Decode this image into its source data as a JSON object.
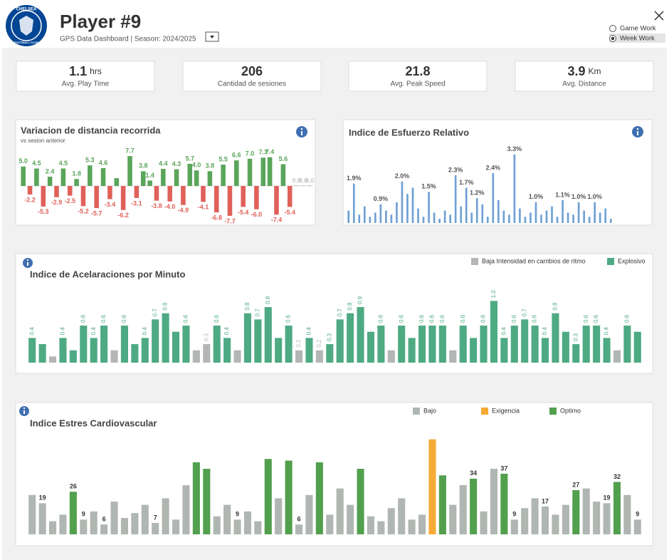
{
  "header": {
    "title": "Player #9",
    "subtitle": "GPS Data Dashboard | Season: 2024/2025",
    "logo_top": "CHELSEA",
    "logo_bottom": "FOOTBALL CLUB"
  },
  "controls": {
    "options": [
      "Game Work",
      "Week Work"
    ],
    "selected_index": 1
  },
  "kpis": [
    {
      "value": 1.1,
      "unit": "hrs",
      "label": "Avg. Play Time"
    },
    {
      "value": 206,
      "label": "Cantidad de sesiones"
    },
    {
      "value": 21.8,
      "label": "Avg. Peak Speed"
    },
    {
      "value": 3.9,
      "unit": "Km",
      "label": "Avg. Distance"
    }
  ],
  "chart_data": [
    {
      "type": "bar",
      "title": "Variacion de distancia recorrida",
      "subtitle": "vs sesion anterior",
      "values": [
        5.0,
        -2.2,
        4.5,
        -5.3,
        2.4,
        -2.9,
        4.5,
        -2.5,
        1.8,
        -5.2,
        5.3,
        -5.7,
        4.6,
        -3.4,
        2.0,
        -6.2,
        7.7,
        -3.1,
        3.8,
        1.4,
        -3.8,
        4.4,
        -4.0,
        4.3,
        -4.9,
        5.7,
        4.0,
        -4.1,
        3.8,
        -6.8,
        5.5,
        -7.7,
        6.6,
        -5.4,
        7.0,
        -6.0,
        7.3,
        7.4,
        -7.4,
        5.6,
        -5.4,
        0.0,
        0.0,
        0.0
      ],
      "value_labels": [
        "5.0",
        "-2.2",
        "4.5",
        "-5.3",
        "2.4",
        "-2.9",
        "4.5",
        "-2.5",
        "1.8",
        "-5.2",
        "5.3",
        "-5.7",
        "4.6",
        "-3.4",
        null,
        "-6.2",
        "7.7",
        "-3.1",
        "3.8",
        "1.4",
        "-3.8",
        "4.4",
        "-4.0",
        "4.3",
        "-4.9",
        "5.7",
        "4.0",
        "-4.1",
        "3.8",
        "-6.8",
        "5.5",
        "-7.7",
        "6.6",
        "-5.4",
        "7.0",
        "-6.0",
        "7.3",
        "7.4",
        "-7.4",
        "5.6",
        "-5.4",
        "0.0",
        "0.0",
        "0.0"
      ],
      "ylim": [
        -9,
        9
      ],
      "colors": {
        "positive": "#5aa55a",
        "negative": "#e0605a",
        "zero": "#c8c8c8"
      }
    },
    {
      "type": "bar",
      "title": "Indice de Esfuerzo Relativo",
      "values": [
        0.6,
        1.9,
        0.4,
        0.8,
        0.3,
        0.5,
        0.9,
        0.6,
        0.4,
        1.0,
        2.0,
        1.4,
        1.7,
        0.7,
        0.3,
        1.5,
        0.5,
        0.2,
        0.6,
        0.4,
        2.3,
        0.8,
        1.7,
        0.5,
        1.2,
        0.9,
        0.3,
        2.4,
        1.1,
        0.6,
        0.4,
        3.3,
        0.7,
        0.3,
        0.5,
        1.0,
        0.4,
        0.6,
        0.8,
        0.3,
        1.1,
        0.5,
        0.4,
        1.0,
        0.6,
        0.3,
        1.0,
        0.5,
        0.7,
        0.2
      ],
      "value_labels": [
        null,
        "1.9%",
        null,
        null,
        null,
        null,
        "0.9%",
        null,
        null,
        null,
        "2.0%",
        null,
        null,
        null,
        null,
        "1.5%",
        null,
        null,
        null,
        null,
        "2.3%",
        null,
        "1.7%",
        null,
        "1.2%",
        null,
        null,
        "2.4%",
        null,
        null,
        null,
        "3.3%",
        null,
        null,
        null,
        "1.0%",
        null,
        null,
        null,
        null,
        "1.1%",
        null,
        null,
        "1.0%",
        null,
        null,
        "1.0%",
        null,
        null,
        null
      ],
      "ylim": [
        0,
        3.5
      ],
      "color": "#6d9fd4"
    },
    {
      "type": "bar",
      "title": "Indice de Acelaraciones por Minuto",
      "ylim": [
        0,
        1.2
      ],
      "series": [
        {
          "name": "Baja Intensidad en cambios de ritmo",
          "color": "#b3b6b4",
          "values": [
            null,
            null,
            0.1,
            null,
            null,
            null,
            null,
            null,
            0.2,
            null,
            null,
            null,
            null,
            null,
            null,
            null,
            0.2,
            0.3,
            null,
            null,
            0.2,
            null,
            null,
            null,
            null,
            null,
            0.2,
            null,
            0.2,
            null,
            null,
            null,
            null,
            null,
            null,
            0.2,
            null,
            null,
            null,
            null,
            null,
            0.2,
            null,
            null,
            null,
            null,
            null,
            null,
            null,
            null,
            null,
            null,
            null,
            null,
            null,
            null,
            null,
            0.2,
            null,
            null
          ],
          "value_labels": [
            null,
            null,
            null,
            null,
            null,
            null,
            null,
            null,
            null,
            null,
            null,
            null,
            null,
            null,
            null,
            null,
            null,
            "0.3",
            null,
            null,
            null,
            null,
            null,
            null,
            null,
            null,
            "0.2",
            null,
            "0.2",
            null,
            null,
            null,
            null,
            null,
            null,
            null,
            null,
            null,
            null,
            null,
            null,
            null,
            null,
            null,
            null,
            null,
            null,
            null,
            null,
            null,
            null,
            null,
            null,
            null,
            null,
            null,
            null,
            null,
            null,
            null
          ]
        },
        {
          "name": "Explosivo",
          "color": "#4eaa83",
          "values": [
            0.4,
            0.3,
            null,
            0.4,
            0.2,
            0.6,
            0.4,
            0.6,
            null,
            0.6,
            0.3,
            0.4,
            0.7,
            0.8,
            0.5,
            0.6,
            null,
            null,
            0.6,
            0.4,
            null,
            0.8,
            0.7,
            0.9,
            0.4,
            0.6,
            null,
            0.4,
            null,
            0.3,
            0.7,
            0.8,
            0.9,
            0.5,
            0.6,
            null,
            0.6,
            0.4,
            0.6,
            0.6,
            0.6,
            null,
            0.6,
            0.4,
            0.6,
            1.0,
            0.4,
            0.6,
            0.7,
            0.6,
            0.4,
            0.8,
            0.5,
            0.3,
            0.6,
            0.6,
            0.4,
            null,
            0.6,
            0.5
          ],
          "value_labels": [
            "0.4",
            null,
            null,
            "0.4",
            null,
            "0.6",
            "0.4",
            "0.6",
            null,
            "0.6",
            null,
            "0.4",
            "0.7",
            "0.8",
            null,
            "0.6",
            null,
            null,
            "0.6",
            "0.4",
            null,
            "0.8",
            "0.7",
            "0.9",
            null,
            "0.6",
            null,
            "0.4",
            null,
            "0.3",
            "0.7",
            "0.8",
            "0.9",
            null,
            "0.6",
            null,
            "0.6",
            null,
            "0.6",
            "0.6",
            "0.6",
            null,
            "0.6",
            null,
            "0.6",
            "1.0",
            "0.4",
            "0.6",
            "0.7",
            "0.6",
            "0.4",
            "0.8",
            null,
            "0.3",
            "0.6",
            "0.6",
            "0.4",
            null,
            "0.6",
            null
          ]
        }
      ]
    },
    {
      "type": "bar",
      "title": "Indice Estres Cardiovascular",
      "ylim": [
        0,
        60
      ],
      "series": [
        {
          "name": "Bajo",
          "color": "#b0b7b2",
          "values": [
            24,
            19,
            8,
            12,
            null,
            9,
            14,
            6,
            20,
            10,
            13,
            18,
            7,
            22,
            9,
            30,
            null,
            null,
            11,
            18,
            9,
            14,
            8,
            null,
            22,
            null,
            6,
            24,
            null,
            12,
            28,
            18,
            null,
            11,
            8,
            16,
            22,
            9,
            12,
            null,
            null,
            18,
            30,
            null,
            14,
            40,
            null,
            9,
            16,
            22,
            17,
            12,
            18,
            null,
            28,
            20,
            19,
            null,
            24,
            9
          ],
          "value_labels": [
            null,
            "19",
            null,
            null,
            null,
            "9",
            null,
            "6",
            null,
            null,
            null,
            null,
            "7",
            null,
            null,
            null,
            null,
            null,
            null,
            null,
            "9",
            null,
            null,
            null,
            null,
            null,
            "6",
            null,
            null,
            null,
            null,
            null,
            null,
            null,
            null,
            null,
            null,
            null,
            null,
            null,
            null,
            null,
            null,
            null,
            null,
            null,
            null,
            "9",
            null,
            null,
            "17",
            null,
            null,
            null,
            null,
            null,
            "19",
            null,
            null,
            "9"
          ]
        },
        {
          "name": "Exigencia",
          "color": "#f5ab35",
          "values": [
            null,
            null,
            null,
            null,
            null,
            null,
            null,
            null,
            null,
            null,
            null,
            null,
            null,
            null,
            null,
            null,
            null,
            null,
            null,
            null,
            null,
            null,
            null,
            null,
            null,
            null,
            null,
            null,
            null,
            null,
            null,
            null,
            null,
            null,
            null,
            null,
            null,
            null,
            null,
            58,
            null,
            null,
            null,
            null,
            null,
            null,
            null,
            null,
            null,
            null,
            null,
            null,
            null,
            null,
            null,
            null,
            null,
            null,
            null,
            null
          ]
        },
        {
          "name": "Optimo",
          "color": "#52a04e",
          "values": [
            null,
            null,
            null,
            null,
            26,
            null,
            null,
            null,
            null,
            null,
            null,
            null,
            null,
            null,
            null,
            null,
            44,
            40,
            null,
            null,
            null,
            null,
            null,
            46,
            null,
            45,
            null,
            null,
            44,
            null,
            null,
            null,
            40,
            null,
            null,
            null,
            null,
            null,
            null,
            null,
            36,
            null,
            null,
            34,
            null,
            null,
            37,
            null,
            null,
            null,
            null,
            null,
            null,
            27,
            null,
            null,
            null,
            32,
            null,
            null
          ],
          "value_labels": [
            null,
            null,
            null,
            null,
            "26",
            null,
            null,
            null,
            null,
            null,
            null,
            null,
            null,
            null,
            null,
            null,
            null,
            null,
            null,
            null,
            null,
            null,
            null,
            null,
            null,
            null,
            null,
            null,
            null,
            null,
            null,
            null,
            null,
            null,
            null,
            null,
            null,
            null,
            null,
            null,
            null,
            null,
            null,
            "34",
            null,
            null,
            "37",
            null,
            null,
            null,
            null,
            null,
            null,
            "27",
            null,
            null,
            null,
            "32",
            null,
            null
          ]
        }
      ]
    }
  ]
}
